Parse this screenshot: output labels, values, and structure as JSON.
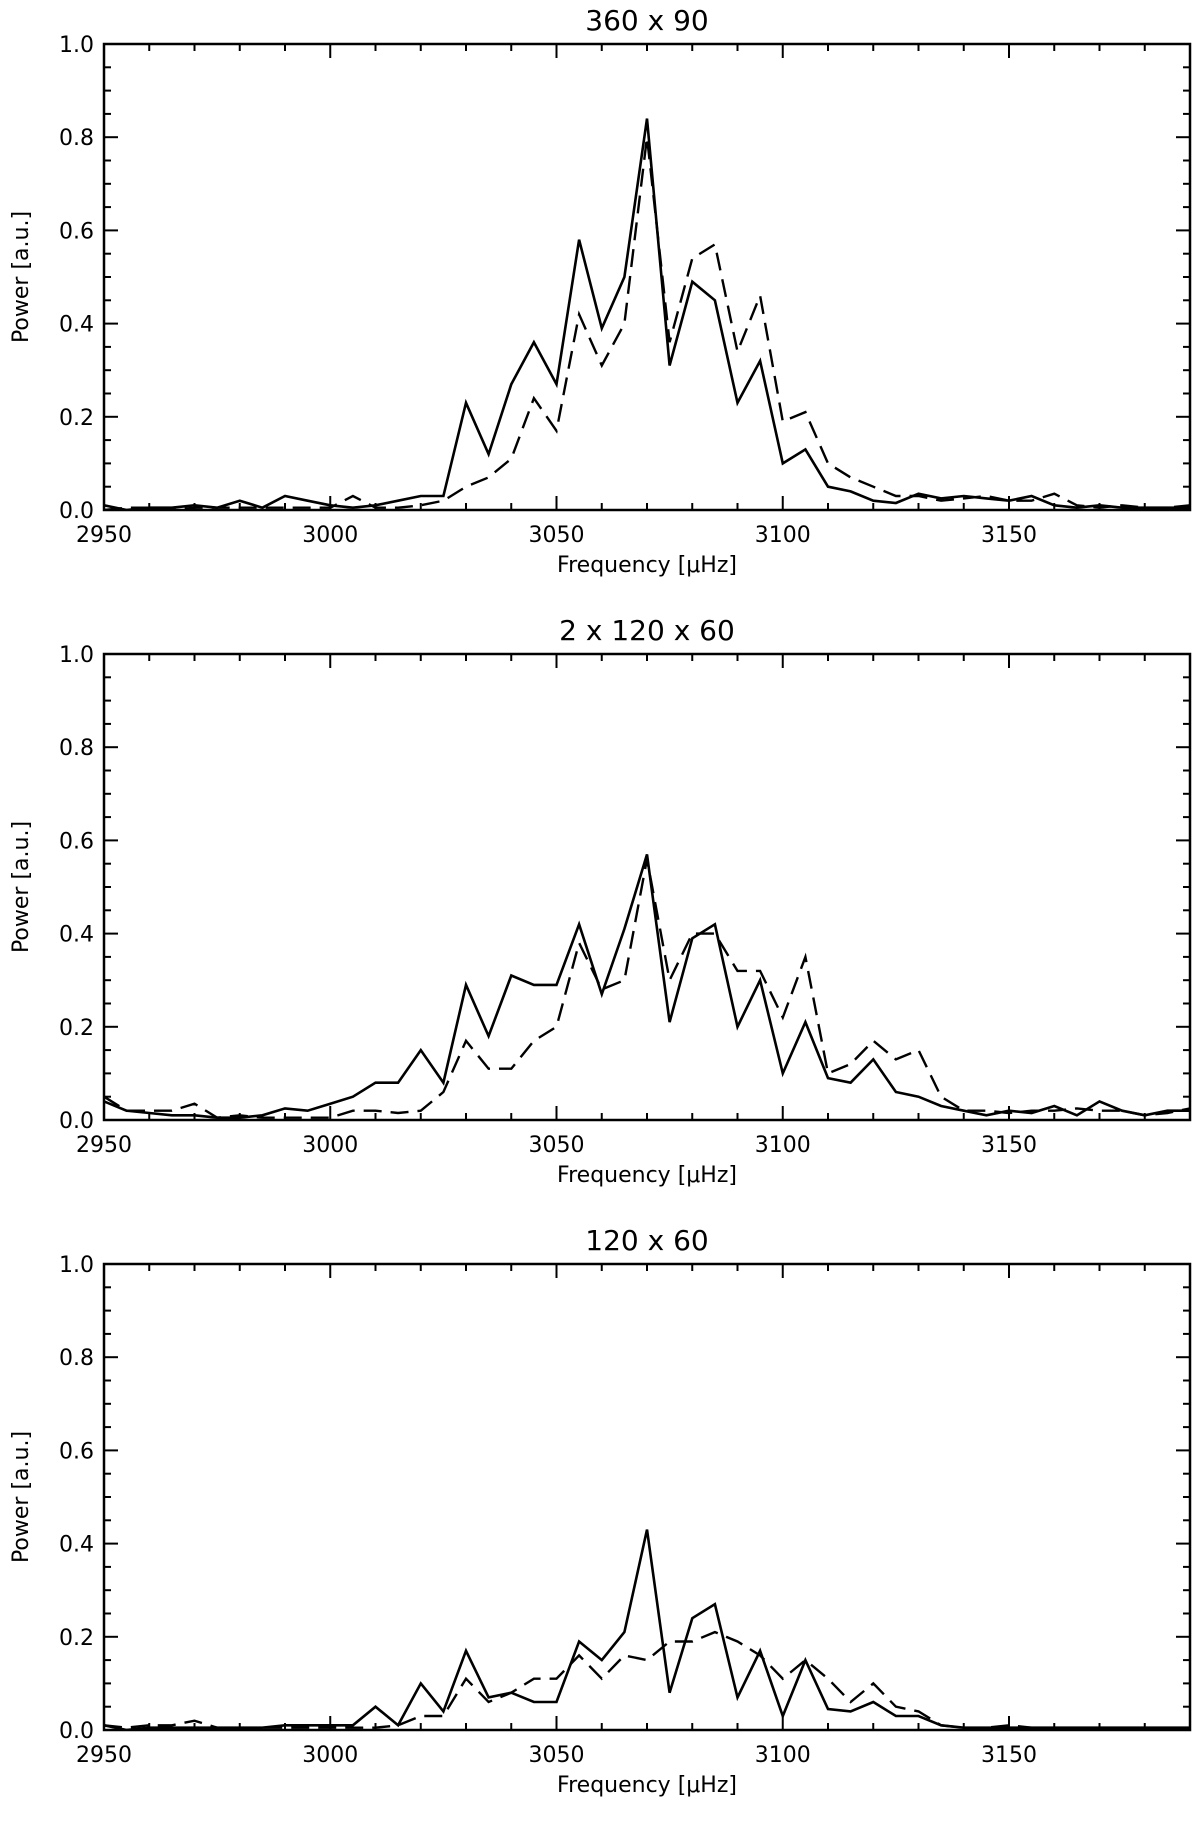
{
  "chart_data": [
    {
      "type": "line",
      "title": "360 x 90",
      "xlabel": "Frequency [μHz]",
      "ylabel": "Power [a.u.]",
      "xlim": [
        2950,
        3190
      ],
      "ylim": [
        0,
        1.0
      ],
      "xticks": [
        2950,
        3000,
        3050,
        3100,
        3150
      ],
      "yticks": [
        "0.0",
        "0.2",
        "0.4",
        "0.6",
        "0.8",
        "1.0"
      ],
      "grid": false,
      "series": [
        {
          "style": "solid",
          "x": [
            2950,
            2955,
            2960,
            2965,
            2970,
            2975,
            2980,
            2985,
            2990,
            2995,
            3000,
            3005,
            3010,
            3015,
            3020,
            3025,
            3030,
            3035,
            3040,
            3045,
            3050,
            3055,
            3060,
            3065,
            3070,
            3075,
            3080,
            3085,
            3090,
            3095,
            3100,
            3105,
            3110,
            3115,
            3120,
            3125,
            3130,
            3135,
            3140,
            3145,
            3150,
            3155,
            3160,
            3165,
            3170,
            3175,
            3180,
            3185,
            3190
          ],
          "y": [
            0.01,
            0.0,
            0.005,
            0.005,
            0.01,
            0.005,
            0.02,
            0.005,
            0.03,
            0.02,
            0.01,
            0.005,
            0.01,
            0.02,
            0.03,
            0.03,
            0.23,
            0.12,
            0.27,
            0.36,
            0.27,
            0.58,
            0.39,
            0.5,
            0.84,
            0.31,
            0.49,
            0.45,
            0.23,
            0.32,
            0.1,
            0.13,
            0.05,
            0.04,
            0.02,
            0.015,
            0.035,
            0.025,
            0.03,
            0.025,
            0.02,
            0.03,
            0.01,
            0.005,
            0.01,
            0.005,
            0.005,
            0.005,
            0.005
          ]
        },
        {
          "style": "dashed",
          "x": [
            2950,
            2955,
            2960,
            2965,
            2970,
            2975,
            2980,
            2985,
            2990,
            2995,
            3000,
            3005,
            3010,
            3015,
            3020,
            3025,
            3030,
            3035,
            3040,
            3045,
            3050,
            3055,
            3060,
            3065,
            3070,
            3075,
            3080,
            3085,
            3090,
            3095,
            3100,
            3105,
            3110,
            3115,
            3120,
            3125,
            3130,
            3135,
            3140,
            3145,
            3150,
            3155,
            3160,
            3165,
            3170,
            3175,
            3180,
            3185,
            3190
          ],
          "y": [
            0.0,
            0.005,
            0.005,
            0.0,
            0.005,
            0.005,
            0.005,
            0.005,
            0.005,
            0.005,
            0.005,
            0.03,
            0.005,
            0.005,
            0.01,
            0.02,
            0.05,
            0.07,
            0.11,
            0.24,
            0.17,
            0.42,
            0.31,
            0.4,
            0.8,
            0.36,
            0.54,
            0.57,
            0.34,
            0.46,
            0.19,
            0.21,
            0.1,
            0.07,
            0.05,
            0.03,
            0.03,
            0.02,
            0.025,
            0.03,
            0.02,
            0.02,
            0.035,
            0.01,
            0.005,
            0.01,
            0.005,
            0.005,
            0.01
          ]
        }
      ]
    },
    {
      "type": "line",
      "title": "2 x 120 x 60",
      "xlabel": "Frequency [μHz]",
      "ylabel": "Power [a.u.]",
      "xlim": [
        2950,
        3190
      ],
      "ylim": [
        0,
        1.0
      ],
      "xticks": [
        2950,
        3000,
        3050,
        3100,
        3150
      ],
      "yticks": [
        "0.0",
        "0.2",
        "0.4",
        "0.6",
        "0.8",
        "1.0"
      ],
      "grid": false,
      "series": [
        {
          "style": "solid",
          "x": [
            2950,
            2955,
            2960,
            2965,
            2970,
            2975,
            2980,
            2985,
            2990,
            2995,
            3000,
            3005,
            3010,
            3015,
            3020,
            3025,
            3030,
            3035,
            3040,
            3045,
            3050,
            3055,
            3060,
            3065,
            3070,
            3075,
            3080,
            3085,
            3090,
            3095,
            3100,
            3105,
            3110,
            3115,
            3120,
            3125,
            3130,
            3135,
            3140,
            3145,
            3150,
            3155,
            3160,
            3165,
            3170,
            3175,
            3180,
            3185,
            3190
          ],
          "y": [
            0.04,
            0.02,
            0.015,
            0.01,
            0.01,
            0.005,
            0.005,
            0.01,
            0.025,
            0.02,
            0.035,
            0.05,
            0.08,
            0.08,
            0.15,
            0.08,
            0.29,
            0.18,
            0.31,
            0.29,
            0.29,
            0.42,
            0.27,
            0.41,
            0.57,
            0.21,
            0.39,
            0.42,
            0.2,
            0.3,
            0.1,
            0.21,
            0.09,
            0.08,
            0.13,
            0.06,
            0.05,
            0.03,
            0.02,
            0.01,
            0.02,
            0.015,
            0.03,
            0.01,
            0.04,
            0.02,
            0.01,
            0.02,
            0.02
          ]
        },
        {
          "style": "dashed",
          "x": [
            2950,
            2955,
            2960,
            2965,
            2970,
            2975,
            2980,
            2985,
            2990,
            2995,
            3000,
            3005,
            3010,
            3015,
            3020,
            3025,
            3030,
            3035,
            3040,
            3045,
            3050,
            3055,
            3060,
            3065,
            3070,
            3075,
            3080,
            3085,
            3090,
            3095,
            3100,
            3105,
            3110,
            3115,
            3120,
            3125,
            3130,
            3135,
            3140,
            3145,
            3150,
            3155,
            3160,
            3165,
            3170,
            3175,
            3180,
            3185,
            3190
          ],
          "y": [
            0.05,
            0.02,
            0.02,
            0.02,
            0.035,
            0.005,
            0.01,
            0.005,
            0.005,
            0.005,
            0.005,
            0.02,
            0.02,
            0.015,
            0.02,
            0.06,
            0.17,
            0.11,
            0.11,
            0.17,
            0.2,
            0.38,
            0.28,
            0.3,
            0.56,
            0.3,
            0.4,
            0.4,
            0.32,
            0.32,
            0.22,
            0.35,
            0.1,
            0.12,
            0.17,
            0.13,
            0.15,
            0.05,
            0.02,
            0.02,
            0.015,
            0.02,
            0.02,
            0.025,
            0.02,
            0.02,
            0.01,
            0.015,
            0.025
          ]
        }
      ]
    },
    {
      "type": "line",
      "title": "120 x 60",
      "xlabel": "Frequency [μHz]",
      "ylabel": "Power [a.u.]",
      "xlim": [
        2950,
        3190
      ],
      "ylim": [
        0,
        1.0
      ],
      "xticks": [
        2950,
        3000,
        3050,
        3100,
        3150
      ],
      "yticks": [
        "0.0",
        "0.2",
        "0.4",
        "0.6",
        "0.8",
        "1.0"
      ],
      "grid": false,
      "series": [
        {
          "style": "solid",
          "x": [
            2950,
            2955,
            2960,
            2965,
            2970,
            2975,
            2980,
            2985,
            2990,
            2995,
            3000,
            3005,
            3010,
            3015,
            3020,
            3025,
            3030,
            3035,
            3040,
            3045,
            3050,
            3055,
            3060,
            3065,
            3070,
            3075,
            3080,
            3085,
            3090,
            3095,
            3100,
            3105,
            3110,
            3115,
            3120,
            3125,
            3130,
            3135,
            3140,
            3145,
            3150,
            3155,
            3160,
            3165,
            3170,
            3175,
            3180,
            3185,
            3190
          ],
          "y": [
            0.01,
            0.0,
            0.005,
            0.005,
            0.005,
            0.005,
            0.005,
            0.005,
            0.01,
            0.01,
            0.01,
            0.01,
            0.05,
            0.01,
            0.1,
            0.04,
            0.17,
            0.07,
            0.08,
            0.06,
            0.06,
            0.19,
            0.15,
            0.21,
            0.43,
            0.08,
            0.24,
            0.27,
            0.07,
            0.17,
            0.03,
            0.15,
            0.045,
            0.04,
            0.06,
            0.03,
            0.03,
            0.01,
            0.005,
            0.005,
            0.005,
            0.005,
            0.005,
            0.005,
            0.005,
            0.005,
            0.005,
            0.005,
            0.005
          ]
        },
        {
          "style": "dashed",
          "x": [
            2950,
            2955,
            2960,
            2965,
            2970,
            2975,
            2980,
            2985,
            2990,
            2995,
            3000,
            3005,
            3010,
            3015,
            3020,
            3025,
            3030,
            3035,
            3040,
            3045,
            3050,
            3055,
            3060,
            3065,
            3070,
            3075,
            3080,
            3085,
            3090,
            3095,
            3100,
            3105,
            3110,
            3115,
            3120,
            3125,
            3130,
            3135,
            3140,
            3145,
            3150,
            3155,
            3160,
            3165,
            3170,
            3175,
            3180,
            3185,
            3190
          ],
          "y": [
            0.01,
            0.005,
            0.01,
            0.01,
            0.02,
            0.005,
            0.005,
            0.005,
            0.005,
            0.005,
            0.005,
            0.005,
            0.005,
            0.01,
            0.03,
            0.03,
            0.11,
            0.06,
            0.08,
            0.11,
            0.11,
            0.16,
            0.11,
            0.16,
            0.15,
            0.19,
            0.19,
            0.21,
            0.19,
            0.16,
            0.11,
            0.15,
            0.11,
            0.06,
            0.1,
            0.05,
            0.04,
            0.01,
            0.005,
            0.005,
            0.01,
            0.005,
            0.005,
            0.005,
            0.005,
            0.005,
            0.005,
            0.005,
            0.005
          ]
        }
      ]
    }
  ]
}
